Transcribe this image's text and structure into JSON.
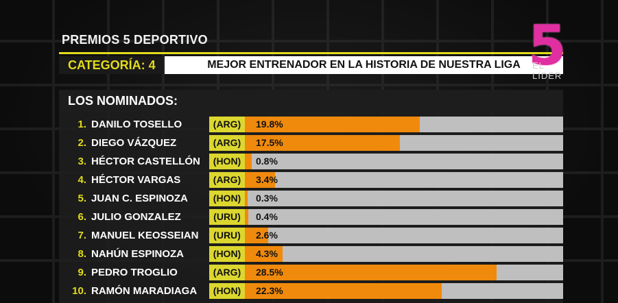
{
  "header": {
    "title": "PREMIOS 5 DEPORTIVO",
    "category_label": "CATEGORÍA: 4",
    "category_title": "MEJOR ENTRENADOR EN LA HISTORIA DE NUESTRA LIGA"
  },
  "logo": {
    "mark": "5",
    "sub": "EL LÍDER"
  },
  "panel": {
    "heading": "LOS NOMINADOS:"
  },
  "colors": {
    "accent": "#e3dc1a",
    "bar": "#f08a0c",
    "track": "#bfbfbf",
    "logo": "#e02fa0"
  },
  "chart_data": {
    "type": "bar",
    "categories": [
      "DANILO TOSELLO",
      "DIEGO VÁZQUEZ",
      "HÉCTOR CASTELLÓN",
      "HÉCTOR VARGAS",
      "JUAN C. ESPINOZA",
      "JULIO GONZALEZ",
      "MANUEL KEOSSEIAN",
      "NAHÚN ESPINOZA",
      "PEDRO TROGLIO",
      "RAMÓN MARADIAGA"
    ],
    "values": [
      19.8,
      17.5,
      0.8,
      3.4,
      0.3,
      0.4,
      2.6,
      4.3,
      28.5,
      22.3
    ],
    "ylim": [
      0,
      36
    ]
  },
  "nominees": [
    {
      "num": "1.",
      "name": "DANILO TOSELLO",
      "country": "(ARG)",
      "pct": "19.8%"
    },
    {
      "num": "2.",
      "name": "DIEGO VÁZQUEZ",
      "country": "(ARG)",
      "pct": "17.5%"
    },
    {
      "num": "3.",
      "name": "HÉCTOR CASTELLÓN",
      "country": "(HON)",
      "pct": "0.8%"
    },
    {
      "num": "4.",
      "name": "HÉCTOR VARGAS",
      "country": "(ARG)",
      "pct": "3.4%"
    },
    {
      "num": "5.",
      "name": "JUAN C. ESPINOZA",
      "country": "(HON)",
      "pct": "0.3%"
    },
    {
      "num": "6.",
      "name": "JULIO GONZALEZ",
      "country": "(URU)",
      "pct": "0.4%"
    },
    {
      "num": "7.",
      "name": "MANUEL KEOSSEIAN",
      "country": "(URU)",
      "pct": "2.6%"
    },
    {
      "num": "8.",
      "name": "NAHÚN ESPINOZA",
      "country": "(HON)",
      "pct": "4.3%"
    },
    {
      "num": "9.",
      "name": "PEDRO TROGLIO",
      "country": "(ARG)",
      "pct": "28.5%"
    },
    {
      "num": "10.",
      "name": "RAMÓN MARADIAGA",
      "country": "(HON)",
      "pct": "22.3%"
    }
  ]
}
